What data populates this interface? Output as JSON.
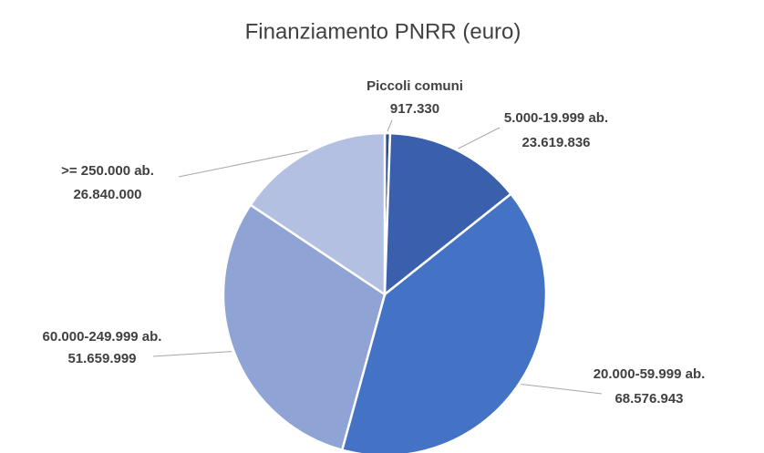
{
  "chart_data": {
    "type": "pie",
    "title": "Finanziamento PNRR (euro)",
    "categories": [
      "Piccoli comuni",
      "5.000-19.999 ab.",
      "20.000-59.999 ab.",
      "60.000-249.999 ab.",
      ">= 250.000 ab."
    ],
    "values": [
      917330,
      23619836,
      68576943,
      51659999,
      26840000
    ],
    "value_labels": [
      "917.330",
      "23.619.836",
      "68.576.943",
      "51.659.999",
      "26.840.000"
    ],
    "colors": [
      "#2e4f8f",
      "#3a60ad",
      "#4472c4",
      "#8fa3d4",
      "#b4c0e2"
    ]
  }
}
